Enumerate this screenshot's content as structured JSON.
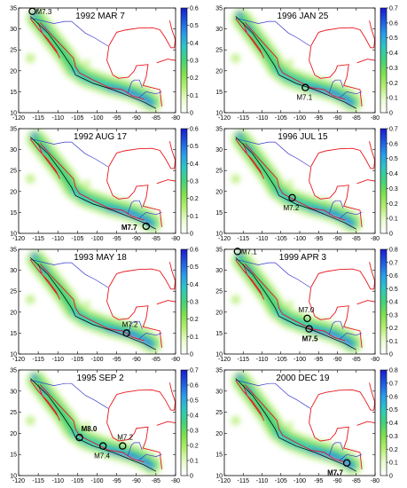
{
  "xaxis": {
    "min": -120,
    "max": -80,
    "ticks": [
      -120,
      -115,
      -110,
      -105,
      -100,
      -95,
      -90,
      -85,
      -80
    ]
  },
  "yaxis": {
    "min": 10,
    "max": 35,
    "ticks": [
      10,
      15,
      20,
      25,
      30,
      35
    ]
  },
  "colors": {
    "colormap": [
      "#ffffff",
      "#e8fbd0",
      "#b6ee74",
      "#7fe04c",
      "#44d27a",
      "#2ec7c0",
      "#2a9de8",
      "#1f5ae0",
      "#1a1acc"
    ],
    "coastline": "#e8141c",
    "border": "#3a3acc",
    "trench": "#000000"
  },
  "panels": [
    {
      "title": "1992 MAR 7",
      "cmax": 0.6,
      "cticks": [
        "0",
        "0.1",
        "0.2",
        "0.3",
        "0.4",
        "0.5",
        "0.6"
      ],
      "events": [
        {
          "label": "M7.3",
          "lon": -116.5,
          "lat": 34.2,
          "bold": false,
          "dx": 4,
          "dy": 3
        }
      ]
    },
    {
      "title": "1996 JAN 25",
      "cmax": 0.7,
      "cticks": [
        "0",
        "0.1",
        "0.2",
        "0.3",
        "0.4",
        "0.5",
        "0.6",
        "0.7"
      ],
      "events": [
        {
          "label": "M7.1",
          "lon": -98.5,
          "lat": 16.0,
          "bold": false,
          "dx": -10,
          "dy": 14
        }
      ]
    },
    {
      "title": "1992 AUG 17",
      "cmax": 0.6,
      "cticks": [
        "0",
        "0.1",
        "0.2",
        "0.3",
        "0.4",
        "0.5",
        "0.6"
      ],
      "events": [
        {
          "label": "M7.7",
          "lon": -87.5,
          "lat": 11.7,
          "bold": true,
          "dx": -28,
          "dy": 4
        }
      ]
    },
    {
      "title": "1996 JUL 15",
      "cmax": 0.7,
      "cticks": [
        "0",
        "0.1",
        "0.2",
        "0.3",
        "0.4",
        "0.5",
        "0.6",
        "0.7"
      ],
      "events": [
        {
          "label": "M7.2",
          "lon": -102.0,
          "lat": 18.5,
          "bold": false,
          "dx": -10,
          "dy": 14
        }
      ]
    },
    {
      "title": "1993 MAY 18",
      "cmax": 0.6,
      "cticks": [
        "0",
        "0.1",
        "0.2",
        "0.3",
        "0.4",
        "0.5",
        "0.6"
      ],
      "events": [
        {
          "label": "M7.2",
          "lon": -92.5,
          "lat": 15.0,
          "bold": false,
          "dx": -5,
          "dy": -7
        }
      ]
    },
    {
      "title": "1999 APR 3",
      "cmax": 0.8,
      "cticks": [
        "0",
        "0.1",
        "0.2",
        "0.3",
        "0.4",
        "0.5",
        "0.6",
        "0.7",
        "0.8"
      ],
      "events": [
        {
          "label": "M7.1",
          "lon": -116.5,
          "lat": 34.5,
          "bold": false,
          "dx": 4,
          "dy": 3
        },
        {
          "label": "M7.0",
          "lon": -98.0,
          "lat": 18.5,
          "bold": false,
          "dx": -10,
          "dy": -7
        },
        {
          "label": "M7.5",
          "lon": -97.5,
          "lat": 16.0,
          "bold": true,
          "dx": -8,
          "dy": 14
        }
      ]
    },
    {
      "title": "1995 SEP 2",
      "cmax": 0.7,
      "cticks": [
        "0",
        "0.1",
        "0.2",
        "0.3",
        "0.4",
        "0.5",
        "0.6",
        "0.7"
      ],
      "events": [
        {
          "label": "M8.0",
          "lon": -104.5,
          "lat": 19.0,
          "bold": true,
          "dx": 2,
          "dy": -7
        },
        {
          "label": "M7.4",
          "lon": -98.5,
          "lat": 17.0,
          "bold": false,
          "dx": -10,
          "dy": 14
        },
        {
          "label": "M7.2",
          "lon": -93.5,
          "lat": 17.0,
          "bold": false,
          "dx": -6,
          "dy": -7
        }
      ]
    },
    {
      "title": "2000 DEC 19",
      "cmax": 0.8,
      "cticks": [
        "0",
        "0.1",
        "0.2",
        "0.3",
        "0.4",
        "0.5",
        "0.6",
        "0.7",
        "0.8"
      ],
      "events": [
        {
          "label": "M7.7",
          "lon": -87.5,
          "lat": 13.0,
          "bold": true,
          "dx": -22,
          "dy": 14
        }
      ]
    }
  ]
}
